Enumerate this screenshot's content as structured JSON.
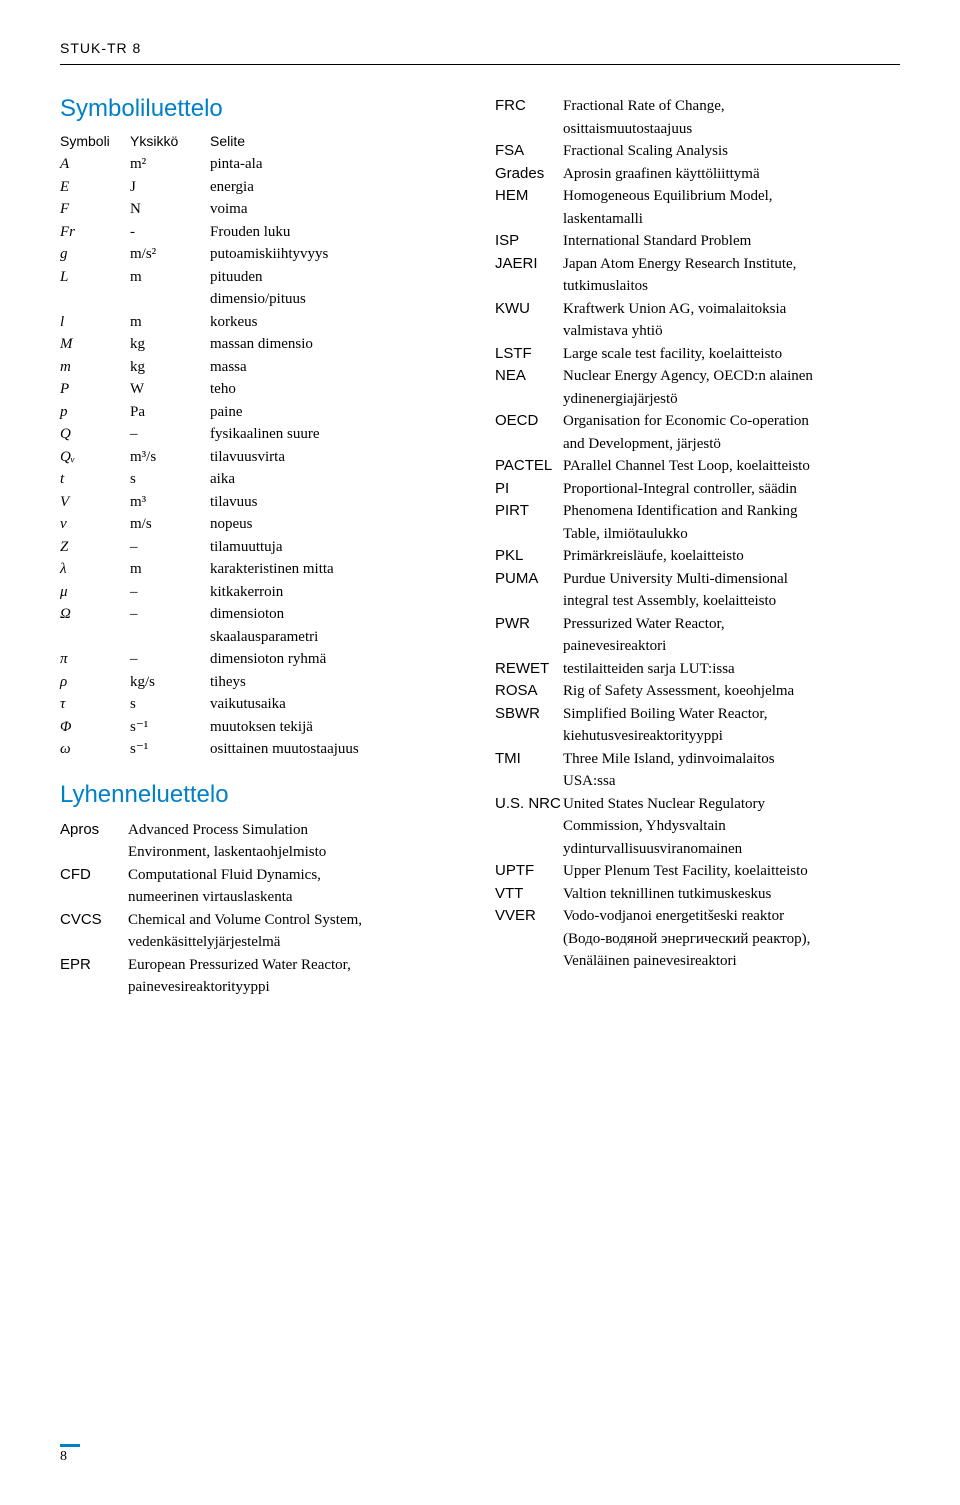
{
  "doc_header": "STUK-TR 8",
  "left": {
    "title": "Symboliluettelo",
    "header": {
      "c1": "Symboli",
      "c2": "Yksikkö",
      "c3": "Selite"
    },
    "rows": [
      {
        "c1": "A",
        "c2": "m²",
        "c3": "pinta-ala"
      },
      {
        "c1": "E",
        "c2": "J",
        "c3": "energia"
      },
      {
        "c1": "F",
        "c2": "N",
        "c3": "voima"
      },
      {
        "c1": "Fr",
        "c2": "-",
        "c3": "Frouden luku"
      },
      {
        "c1": "g",
        "c2": "m/s²",
        "c3": "putoamiskiihtyvyys"
      },
      {
        "c1": "L",
        "c2": "m",
        "c3": "pituuden"
      },
      {
        "c1": "",
        "c2": "",
        "c3": "dimensio/pituus"
      },
      {
        "c1": "l",
        "c2": "m",
        "c3": "korkeus"
      },
      {
        "c1": "M",
        "c2": "kg",
        "c3": "massan dimensio"
      },
      {
        "c1": "m",
        "c2": "kg",
        "c3": "massa"
      },
      {
        "c1": "P",
        "c2": "W",
        "c3": "teho"
      },
      {
        "c1": "p",
        "c2": "Pa",
        "c3": "paine"
      },
      {
        "c1": "Q",
        "c2": "–",
        "c3": "fysikaalinen suure"
      },
      {
        "c1": "Qᵥ",
        "c2": "m³/s",
        "c3": "tilavuusvirta"
      },
      {
        "c1": "t",
        "c2": "s",
        "c3": "aika"
      },
      {
        "c1": "V",
        "c2": "m³",
        "c3": "tilavuus"
      },
      {
        "c1": "v",
        "c2": "m/s",
        "c3": "nopeus"
      },
      {
        "c1": "Z",
        "c2": "–",
        "c3": "tilamuuttuja"
      },
      {
        "c1": "λ",
        "c2": "m",
        "c3": "karakteristinen mitta"
      },
      {
        "c1": "μ",
        "c2": "–",
        "c3": "kitkakerroin"
      },
      {
        "c1": "Ω",
        "c2": "–",
        "c3": "dimensioton"
      },
      {
        "c1": "",
        "c2": "",
        "c3": "skaalausparametri"
      },
      {
        "c1": "π",
        "c2": "–",
        "c3": "dimensioton ryhmä"
      },
      {
        "c1": "ρ",
        "c2": "kg/s",
        "c3": "tiheys"
      },
      {
        "c1": "τ",
        "c2": "s",
        "c3": "vaikutusaika"
      },
      {
        "c1": "Φ",
        "c2": "s⁻¹",
        "c3": "muutoksen tekijä"
      },
      {
        "c1": "ω",
        "c2": "s⁻¹",
        "c3": "osittainen muutostaajuus"
      }
    ],
    "title2": "Lyhenneluettelo",
    "abbrevs": [
      {
        "a1": "Apros",
        "lines": [
          "Advanced Process Simulation",
          "Environment, laskentaohjelmisto"
        ]
      },
      {
        "a1": "CFD",
        "lines": [
          "Computational Fluid Dynamics,",
          "numeerinen virtauslaskenta"
        ]
      },
      {
        "a1": "CVCS",
        "lines": [
          "Chemical and Volume Control System,",
          "vedenkäsittelyjärjestelmä"
        ]
      },
      {
        "a1": "EPR",
        "lines": [
          "European Pressurized Water Reactor,",
          "painevesireaktorityyppi"
        ]
      }
    ]
  },
  "right": {
    "abbrevs": [
      {
        "a1": "FRC",
        "lines": [
          "Fractional Rate of Change,",
          "osittaismuutostaajuus"
        ]
      },
      {
        "a1": "FSA",
        "lines": [
          "Fractional Scaling Analysis"
        ]
      },
      {
        "a1": "Grades",
        "lines": [
          "Aprosin graafinen käyttöliittymä"
        ]
      },
      {
        "a1": "HEM",
        "lines": [
          "Homogeneous Equilibrium Model,",
          "laskentamalli"
        ]
      },
      {
        "a1": "ISP",
        "lines": [
          "International Standard Problem"
        ]
      },
      {
        "a1": "JAERI",
        "lines": [
          "Japan Atom Energy Research Institute,",
          "tutkimuslaitos"
        ]
      },
      {
        "a1": "KWU",
        "lines": [
          "Kraftwerk Union AG, voimalaitoksia",
          "valmistava yhtiö"
        ]
      },
      {
        "a1": "LSTF",
        "lines": [
          "Large scale test facility, koelaitteisto"
        ]
      },
      {
        "a1": "NEA",
        "lines": [
          "Nuclear Energy Agency, OECD:n alainen",
          "ydinenergiajärjestö"
        ]
      },
      {
        "a1": "OECD",
        "lines": [
          "Organisation for Economic Co-operation",
          "and Development, järjestö"
        ]
      },
      {
        "a1": "PACTEL",
        "lines": [
          "PArallel Channel Test Loop, koelaitteisto"
        ]
      },
      {
        "a1": "PI",
        "lines": [
          "Proportional-Integral controller, säädin"
        ]
      },
      {
        "a1": "PIRT",
        "lines": [
          "Phenomena Identification and Ranking",
          "Table, ilmiötaulukko"
        ]
      },
      {
        "a1": "PKL",
        "lines": [
          "Primärkreisläufe, koelaitteisto"
        ]
      },
      {
        "a1": "PUMA",
        "lines": [
          "Purdue University Multi-dimensional",
          "integral test Assembly, koelaitteisto"
        ]
      },
      {
        "a1": "PWR",
        "lines": [
          "Pressurized Water Reactor,",
          "painevesireaktori"
        ]
      },
      {
        "a1": "REWET",
        "lines": [
          "testilaitteiden sarja LUT:issa"
        ]
      },
      {
        "a1": "ROSA",
        "lines": [
          "Rig of Safety Assessment, koeohjelma"
        ]
      },
      {
        "a1": "SBWR",
        "lines": [
          "Simplified Boiling Water Reactor,",
          "kiehutusvesireaktorityyppi"
        ]
      },
      {
        "a1": "TMI",
        "lines": [
          "Three Mile Island, ydinvoimalaitos",
          "USA:ssa"
        ]
      },
      {
        "a1": "U.S. NRC",
        "lines": [
          "United States Nuclear Regulatory",
          "Commission, Yhdysvaltain",
          "ydinturvallisuusviranomainen"
        ]
      },
      {
        "a1": "UPTF",
        "lines": [
          "Upper Plenum Test Facility, koelaitteisto"
        ]
      },
      {
        "a1": "VTT",
        "lines": [
          "Valtion teknillinen tutkimuskeskus"
        ]
      },
      {
        "a1": "VVER",
        "lines": [
          "Vodo-vodjanoi energetitšeski reaktor",
          "(Водо-водяной энергический реактор),",
          "Venäläinen painevesireaktori"
        ]
      }
    ]
  },
  "page_num": "8",
  "colors": {
    "accent": "#0080c8",
    "text": "#000000",
    "bg": "#ffffff"
  }
}
